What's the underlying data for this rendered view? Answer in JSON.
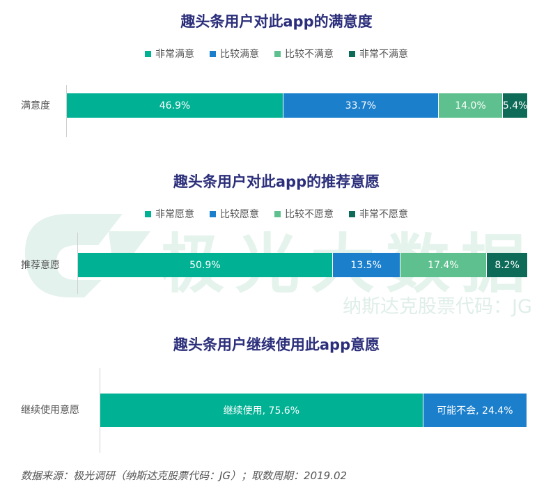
{
  "watermark": {
    "text": "极光大数据",
    "sub": "纳斯达克股票代码：JG"
  },
  "colors": {
    "c1": "#00b194",
    "c2": "#1b7fcc",
    "c3": "#5ec08e",
    "c4": "#0d6b58",
    "title": "#2b2e7a"
  },
  "chart_data": [
    {
      "type": "bar",
      "orientation": "horizontal-stacked",
      "title": "趣头条用户对此app的满意度",
      "categories": [
        "满意度"
      ],
      "series": [
        {
          "name": "非常满意",
          "values": [
            46.9
          ],
          "label": "46.9%"
        },
        {
          "name": "比较满意",
          "values": [
            33.7
          ],
          "label": "33.7%"
        },
        {
          "name": "比较不满意",
          "values": [
            14.0
          ],
          "label": "14.0%"
        },
        {
          "name": "非常不满意",
          "values": [
            5.4
          ],
          "label": "5.4%"
        }
      ]
    },
    {
      "type": "bar",
      "orientation": "horizontal-stacked",
      "title": "趣头条用户对此app的推荐意愿",
      "categories": [
        "推荐意愿"
      ],
      "series": [
        {
          "name": "非常愿意",
          "values": [
            50.9
          ],
          "label": "50.9%"
        },
        {
          "name": "比较愿意",
          "values": [
            13.5
          ],
          "label": "13.5%"
        },
        {
          "name": "比较不愿意",
          "values": [
            17.4
          ],
          "label": "17.4%"
        },
        {
          "name": "非常不愿意",
          "values": [
            8.2
          ],
          "label": "8.2%"
        }
      ]
    },
    {
      "type": "bar",
      "orientation": "horizontal-stacked",
      "title": "趣头条用户继续使用此app意愿",
      "categories": [
        "继续使用意愿"
      ],
      "series": [
        {
          "name": "继续使用",
          "values": [
            75.6
          ],
          "label": "继续使用, 75.6%"
        },
        {
          "name": "可能不会",
          "values": [
            24.4
          ],
          "label": "可能不会, 24.4%"
        }
      ]
    }
  ],
  "source": "数据来源：极光调研（纳斯达克股票代码：JG）；取数周期：2019.02"
}
